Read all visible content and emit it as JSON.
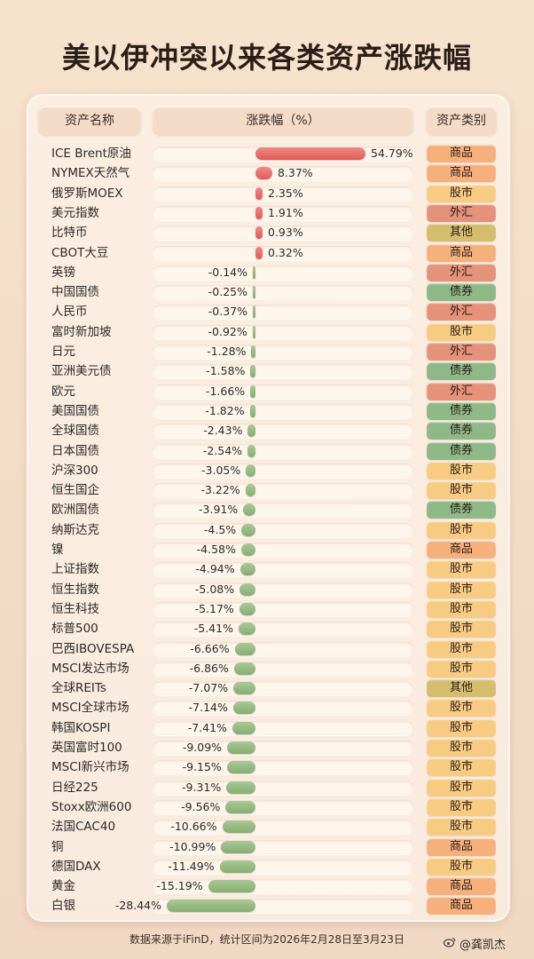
{
  "title": "美以伊冲突以来各类资产涨跌幅",
  "headers": {
    "name": "资产名称",
    "change": "涨跌幅（%）",
    "category": "资产类别"
  },
  "footer": "数据来源于iFinD，统计区间为2026年2月28日至3月23日",
  "watermark": "@龚凯杰",
  "colors": {
    "positive_bar": "#e9706d",
    "negative_bar": "#97ba83",
    "商品": "#f6b07c",
    "股市": "#f7cc82",
    "外汇": "#e49279",
    "债券": "#8fb887",
    "其他": "#d5bd6e"
  },
  "chart_data": {
    "type": "bar",
    "orientation": "horizontal",
    "unit": "%",
    "items": [
      {
        "name": "ICE Brent原油",
        "value": 54.79,
        "label": "54.79%",
        "category": "商品"
      },
      {
        "name": "NYMEX天然气",
        "value": 8.37,
        "label": "8.37%",
        "category": "商品"
      },
      {
        "name": "俄罗斯MOEX",
        "value": 2.35,
        "label": "2.35%",
        "category": "股市"
      },
      {
        "name": "美元指数",
        "value": 1.91,
        "label": "1.91%",
        "category": "外汇"
      },
      {
        "name": "比特币",
        "value": 0.93,
        "label": "0.93%",
        "category": "其他"
      },
      {
        "name": "CBOT大豆",
        "value": 0.32,
        "label": "0.32%",
        "category": "商品"
      },
      {
        "name": "英镑",
        "value": -0.14,
        "label": "-0.14%",
        "category": "外汇"
      },
      {
        "name": "中国国债",
        "value": -0.25,
        "label": "-0.25%",
        "category": "债券"
      },
      {
        "name": "人民币",
        "value": -0.37,
        "label": "-0.37%",
        "category": "外汇"
      },
      {
        "name": "富时新加坡",
        "value": -0.92,
        "label": "-0.92%",
        "category": "股市"
      },
      {
        "name": "日元",
        "value": -1.28,
        "label": "-1.28%",
        "category": "外汇"
      },
      {
        "name": "亚洲美元债",
        "value": -1.58,
        "label": "-1.58%",
        "category": "债券"
      },
      {
        "name": "欧元",
        "value": -1.66,
        "label": "-1.66%",
        "category": "外汇"
      },
      {
        "name": "美国国债",
        "value": -1.82,
        "label": "-1.82%",
        "category": "债券"
      },
      {
        "name": "全球国债",
        "value": -2.43,
        "label": "-2.43%",
        "category": "债券"
      },
      {
        "name": "日本国债",
        "value": -2.54,
        "label": "-2.54%",
        "category": "债券"
      },
      {
        "name": "沪深300",
        "value": -3.05,
        "label": "-3.05%",
        "category": "股市"
      },
      {
        "name": "恒生国企",
        "value": -3.22,
        "label": "-3.22%",
        "category": "股市"
      },
      {
        "name": "欧洲国债",
        "value": -3.91,
        "label": "-3.91%",
        "category": "债券"
      },
      {
        "name": "纳斯达克",
        "value": -4.5,
        "label": "-4.5%",
        "category": "股市"
      },
      {
        "name": "镍",
        "value": -4.58,
        "label": "-4.58%",
        "category": "商品"
      },
      {
        "name": "上证指数",
        "value": -4.94,
        "label": "-4.94%",
        "category": "股市"
      },
      {
        "name": "恒生指数",
        "value": -5.08,
        "label": "-5.08%",
        "category": "股市"
      },
      {
        "name": "恒生科技",
        "value": -5.17,
        "label": "-5.17%",
        "category": "股市"
      },
      {
        "name": "标普500",
        "value": -5.41,
        "label": "-5.41%",
        "category": "股市"
      },
      {
        "name": "巴西IBOVESPA",
        "value": -6.66,
        "label": "-6.66%",
        "category": "股市"
      },
      {
        "name": "MSCI发达市场",
        "value": -6.86,
        "label": "-6.86%",
        "category": "股市"
      },
      {
        "name": "全球REITs",
        "value": -7.07,
        "label": "-7.07%",
        "category": "其他"
      },
      {
        "name": "MSCI全球市场",
        "value": -7.14,
        "label": "-7.14%",
        "category": "股市"
      },
      {
        "name": "韩国KOSPI",
        "value": -7.41,
        "label": "-7.41%",
        "category": "股市"
      },
      {
        "name": "英国富时100",
        "value": -9.09,
        "label": "-9.09%",
        "category": "股市"
      },
      {
        "name": "MSCI新兴市场",
        "value": -9.15,
        "label": "-9.15%",
        "category": "股市"
      },
      {
        "name": "日经225",
        "value": -9.31,
        "label": "-9.31%",
        "category": "股市"
      },
      {
        "name": "Stoxx欧洲600",
        "value": -9.56,
        "label": "-9.56%",
        "category": "股市"
      },
      {
        "name": "法国CAC40",
        "value": -10.66,
        "label": "-10.66%",
        "category": "股市"
      },
      {
        "name": "铜",
        "value": -10.99,
        "label": "-10.99%",
        "category": "商品"
      },
      {
        "name": "德国DAX",
        "value": -11.49,
        "label": "-11.49%",
        "category": "股市"
      },
      {
        "name": "黄金",
        "value": -15.19,
        "label": "-15.19%",
        "category": "商品"
      },
      {
        "name": "白银",
        "value": -28.44,
        "label": "-28.44%",
        "category": "商品"
      }
    ]
  }
}
